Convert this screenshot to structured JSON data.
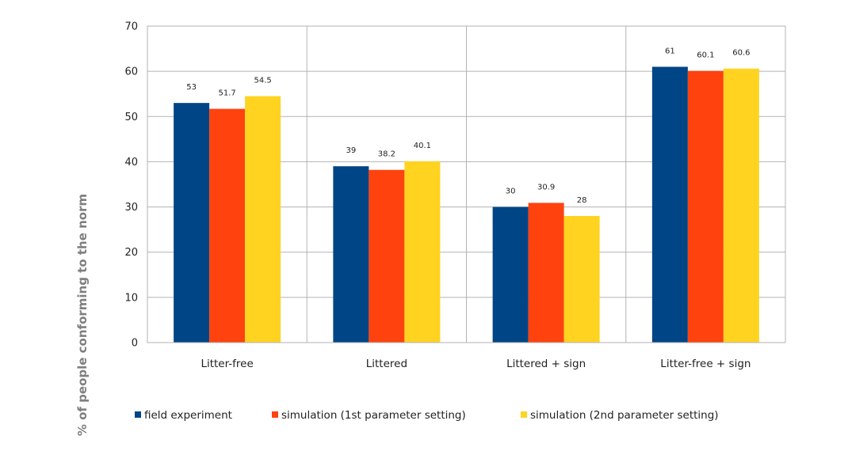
{
  "chart_data": {
    "type": "bar",
    "categories": [
      "Litter-free",
      "Littered",
      "Littered + sign",
      "Litter-free + sign"
    ],
    "series": [
      {
        "name": "field experiment",
        "color": "#004586",
        "values": [
          53,
          39,
          30,
          61
        ],
        "labels": [
          "53",
          "39",
          "30",
          "61"
        ]
      },
      {
        "name": "simulation (1st parameter setting)",
        "color": "#ff420e",
        "values": [
          51.7,
          38.2,
          30.9,
          60.1
        ],
        "labels": [
          "51.7",
          "38.2",
          "30.9",
          "60.1"
        ]
      },
      {
        "name": "simulation (2nd parameter setting)",
        "color": "#ffd320",
        "values": [
          54.5,
          40.1,
          28,
          60.6
        ],
        "labels": [
          "54.5",
          "40.1",
          "28",
          "60.6"
        ]
      }
    ],
    "ylabel": "% of people conforming to the norm",
    "ylim": [
      0,
      70
    ],
    "yticks": [
      0,
      10,
      20,
      30,
      40,
      50,
      60,
      70
    ],
    "grid": true,
    "legend_position": "bottom"
  }
}
